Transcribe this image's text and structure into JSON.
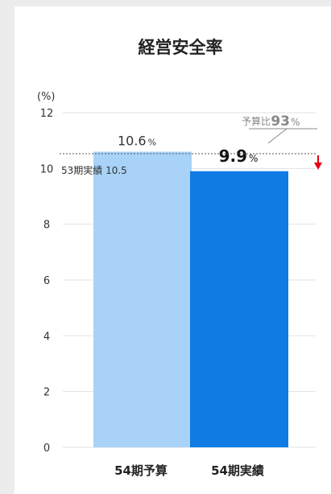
{
  "chart_data": {
    "type": "bar",
    "title": "経営安全率",
    "ylabel": "(%)",
    "ylim": [
      0,
      12
    ],
    "yticks": [
      "0",
      "2",
      "4",
      "6",
      "8",
      "10",
      "12"
    ],
    "categories": [
      "54期予算",
      "54期実績"
    ],
    "values": [
      10.6,
      9.9
    ],
    "value_labels": [
      {
        "number": "10.6",
        "unit": "%"
      },
      {
        "number": "9.9",
        "unit": "%"
      }
    ],
    "bar_colors": [
      "#a8d2f7",
      "#0f7be3"
    ],
    "reference_line": {
      "label": "53期実績 10.5",
      "value": 10.5
    },
    "ratio_annotation": {
      "prefix": "予算比",
      "number": "93",
      "unit": "%"
    },
    "arrow_color": "#e60012",
    "grid": true
  }
}
